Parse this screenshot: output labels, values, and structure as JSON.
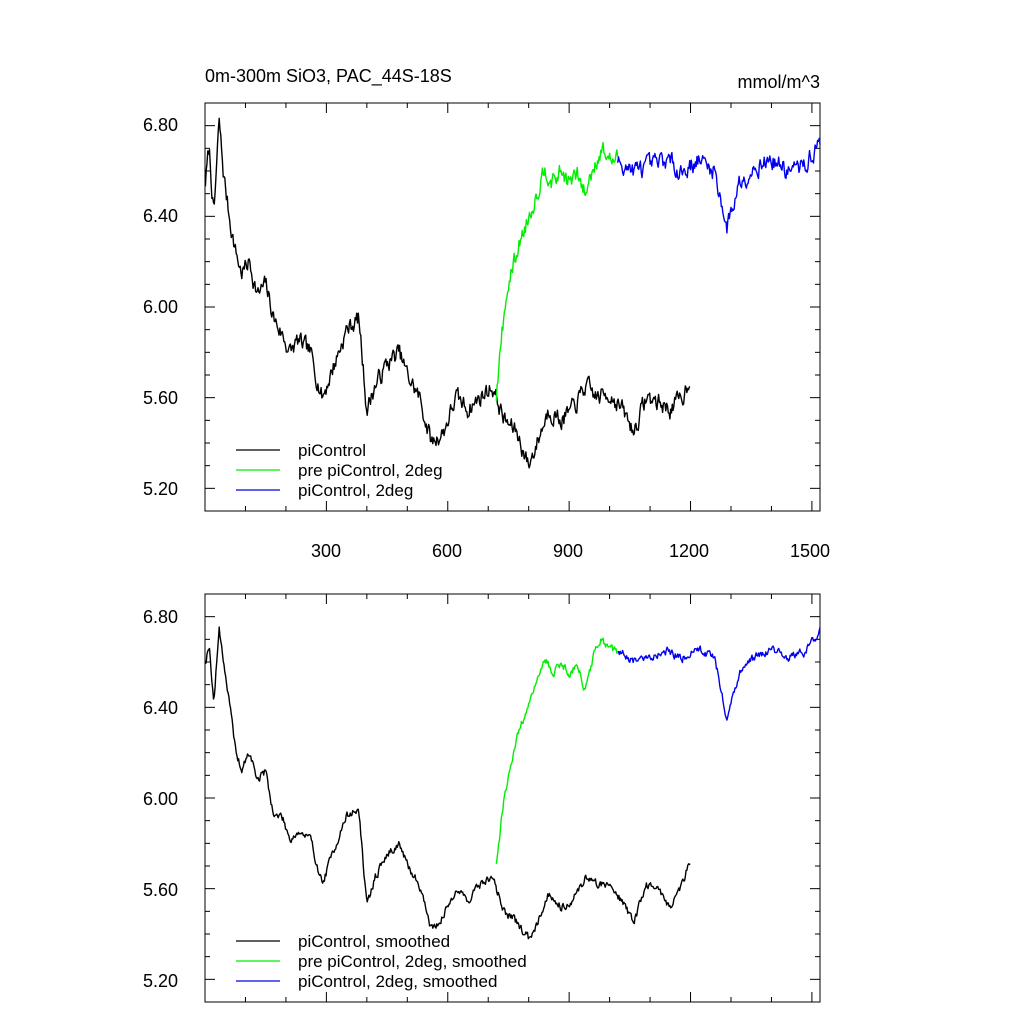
{
  "chart_data": [
    {
      "type": "line",
      "title": "0m-300m SiO3, PAC_44S-18S",
      "units": "mmol/m^3",
      "xlim": [
        0,
        1520
      ],
      "ylim": [
        5.1,
        6.9
      ],
      "yticks": [
        "6.80",
        "6.40",
        "6.00",
        "5.60",
        "5.20"
      ],
      "xticks": [
        "300",
        "600",
        "900",
        "1200",
        "1500"
      ],
      "series": [
        {
          "name": "piControl",
          "color": "#000000",
          "x_start": 1,
          "x_end": 1200,
          "anchors": [
            [
              1,
              6.55
            ],
            [
              10,
              6.7
            ],
            [
              22,
              6.4
            ],
            [
              35,
              6.82
            ],
            [
              45,
              6.6
            ],
            [
              60,
              6.4
            ],
            [
              75,
              6.25
            ],
            [
              90,
              6.15
            ],
            [
              110,
              6.2
            ],
            [
              130,
              6.05
            ],
            [
              150,
              6.1
            ],
            [
              170,
              5.95
            ],
            [
              190,
              5.88
            ],
            [
              210,
              5.8
            ],
            [
              230,
              5.85
            ],
            [
              260,
              5.8
            ],
            [
              290,
              5.6
            ],
            [
              320,
              5.75
            ],
            [
              350,
              5.9
            ],
            [
              380,
              5.95
            ],
            [
              400,
              5.55
            ],
            [
              420,
              5.65
            ],
            [
              450,
              5.75
            ],
            [
              480,
              5.8
            ],
            [
              500,
              5.7
            ],
            [
              530,
              5.6
            ],
            [
              560,
              5.4
            ],
            [
              590,
              5.45
            ],
            [
              620,
              5.6
            ],
            [
              650,
              5.55
            ],
            [
              680,
              5.6
            ],
            [
              710,
              5.65
            ],
            [
              740,
              5.5
            ],
            [
              770,
              5.45
            ],
            [
              800,
              5.3
            ],
            [
              820,
              5.4
            ],
            [
              850,
              5.55
            ],
            [
              880,
              5.5
            ],
            [
              910,
              5.55
            ],
            [
              940,
              5.65
            ],
            [
              970,
              5.6
            ],
            [
              1000,
              5.62
            ],
            [
              1030,
              5.55
            ],
            [
              1060,
              5.45
            ],
            [
              1090,
              5.6
            ],
            [
              1120,
              5.58
            ],
            [
              1150,
              5.55
            ],
            [
              1180,
              5.6
            ],
            [
              1200,
              5.7
            ]
          ]
        },
        {
          "name": "pre piControl, 2deg",
          "color": "#00ee00",
          "x_start": 720,
          "x_end": 1020,
          "anchors": [
            [
              720,
              5.6
            ],
            [
              735,
              5.9
            ],
            [
              750,
              6.1
            ],
            [
              765,
              6.2
            ],
            [
              780,
              6.3
            ],
            [
              800,
              6.4
            ],
            [
              820,
              6.5
            ],
            [
              840,
              6.62
            ],
            [
              860,
              6.55
            ],
            [
              880,
              6.6
            ],
            [
              900,
              6.55
            ],
            [
              920,
              6.58
            ],
            [
              940,
              6.5
            ],
            [
              960,
              6.62
            ],
            [
              980,
              6.7
            ],
            [
              1000,
              6.65
            ],
            [
              1020,
              6.65
            ]
          ]
        },
        {
          "name": "piControl, 2deg",
          "color": "#0000ee",
          "x_start": 1020,
          "x_end": 1520,
          "anchors": [
            [
              1020,
              6.65
            ],
            [
              1060,
              6.6
            ],
            [
              1100,
              6.62
            ],
            [
              1140,
              6.65
            ],
            [
              1180,
              6.6
            ],
            [
              1220,
              6.65
            ],
            [
              1260,
              6.6
            ],
            [
              1290,
              6.35
            ],
            [
              1320,
              6.55
            ],
            [
              1360,
              6.62
            ],
            [
              1400,
              6.65
            ],
            [
              1440,
              6.6
            ],
            [
              1480,
              6.62
            ],
            [
              1520,
              6.72
            ]
          ]
        }
      ]
    },
    {
      "type": "line",
      "xlim": [
        0,
        1520
      ],
      "ylim": [
        5.1,
        6.9
      ],
      "yticks": [
        "6.80",
        "6.40",
        "6.00",
        "5.60",
        "5.20"
      ],
      "series": [
        {
          "name": "piControl, smoothed",
          "color": "#000000",
          "x_start": 1,
          "x_end": 1200,
          "anchors": [
            [
              1,
              6.6
            ],
            [
              10,
              6.68
            ],
            [
              22,
              6.42
            ],
            [
              35,
              6.75
            ],
            [
              45,
              6.62
            ],
            [
              60,
              6.42
            ],
            [
              75,
              6.22
            ],
            [
              90,
              6.12
            ],
            [
              110,
              6.2
            ],
            [
              130,
              6.08
            ],
            [
              150,
              6.12
            ],
            [
              170,
              5.92
            ],
            [
              190,
              5.92
            ],
            [
              210,
              5.82
            ],
            [
              230,
              5.85
            ],
            [
              260,
              5.82
            ],
            [
              290,
              5.62
            ],
            [
              320,
              5.78
            ],
            [
              350,
              5.92
            ],
            [
              380,
              5.95
            ],
            [
              400,
              5.52
            ],
            [
              420,
              5.65
            ],
            [
              450,
              5.75
            ],
            [
              480,
              5.8
            ],
            [
              500,
              5.7
            ],
            [
              530,
              5.62
            ],
            [
              560,
              5.42
            ],
            [
              590,
              5.48
            ],
            [
              620,
              5.6
            ],
            [
              650,
              5.55
            ],
            [
              680,
              5.62
            ],
            [
              710,
              5.65
            ],
            [
              740,
              5.5
            ],
            [
              770,
              5.45
            ],
            [
              800,
              5.38
            ],
            [
              820,
              5.45
            ],
            [
              850,
              5.58
            ],
            [
              880,
              5.52
            ],
            [
              910,
              5.55
            ],
            [
              940,
              5.65
            ],
            [
              970,
              5.62
            ],
            [
              1000,
              5.62
            ],
            [
              1030,
              5.55
            ],
            [
              1060,
              5.45
            ],
            [
              1090,
              5.62
            ],
            [
              1120,
              5.6
            ],
            [
              1150,
              5.52
            ],
            [
              1180,
              5.62
            ],
            [
              1200,
              5.74
            ]
          ]
        },
        {
          "name": "pre piControl, 2deg, smoothed",
          "color": "#00ee00",
          "x_start": 720,
          "x_end": 1020,
          "anchors": [
            [
              720,
              5.7
            ],
            [
              735,
              5.95
            ],
            [
              750,
              6.1
            ],
            [
              765,
              6.22
            ],
            [
              780,
              6.32
            ],
            [
              800,
              6.4
            ],
            [
              820,
              6.52
            ],
            [
              840,
              6.62
            ],
            [
              860,
              6.55
            ],
            [
              880,
              6.6
            ],
            [
              900,
              6.55
            ],
            [
              920,
              6.58
            ],
            [
              940,
              6.48
            ],
            [
              960,
              6.62
            ],
            [
              980,
              6.7
            ],
            [
              1000,
              6.65
            ],
            [
              1020,
              6.65
            ]
          ]
        },
        {
          "name": "piControl, 2deg, smoothed",
          "color": "#0000ee",
          "x_start": 1020,
          "x_end": 1520,
          "anchors": [
            [
              1020,
              6.65
            ],
            [
              1060,
              6.6
            ],
            [
              1100,
              6.62
            ],
            [
              1140,
              6.65
            ],
            [
              1180,
              6.62
            ],
            [
              1220,
              6.66
            ],
            [
              1260,
              6.62
            ],
            [
              1290,
              6.34
            ],
            [
              1320,
              6.55
            ],
            [
              1360,
              6.62
            ],
            [
              1400,
              6.66
            ],
            [
              1440,
              6.62
            ],
            [
              1480,
              6.64
            ],
            [
              1520,
              6.74
            ]
          ]
        }
      ]
    }
  ]
}
